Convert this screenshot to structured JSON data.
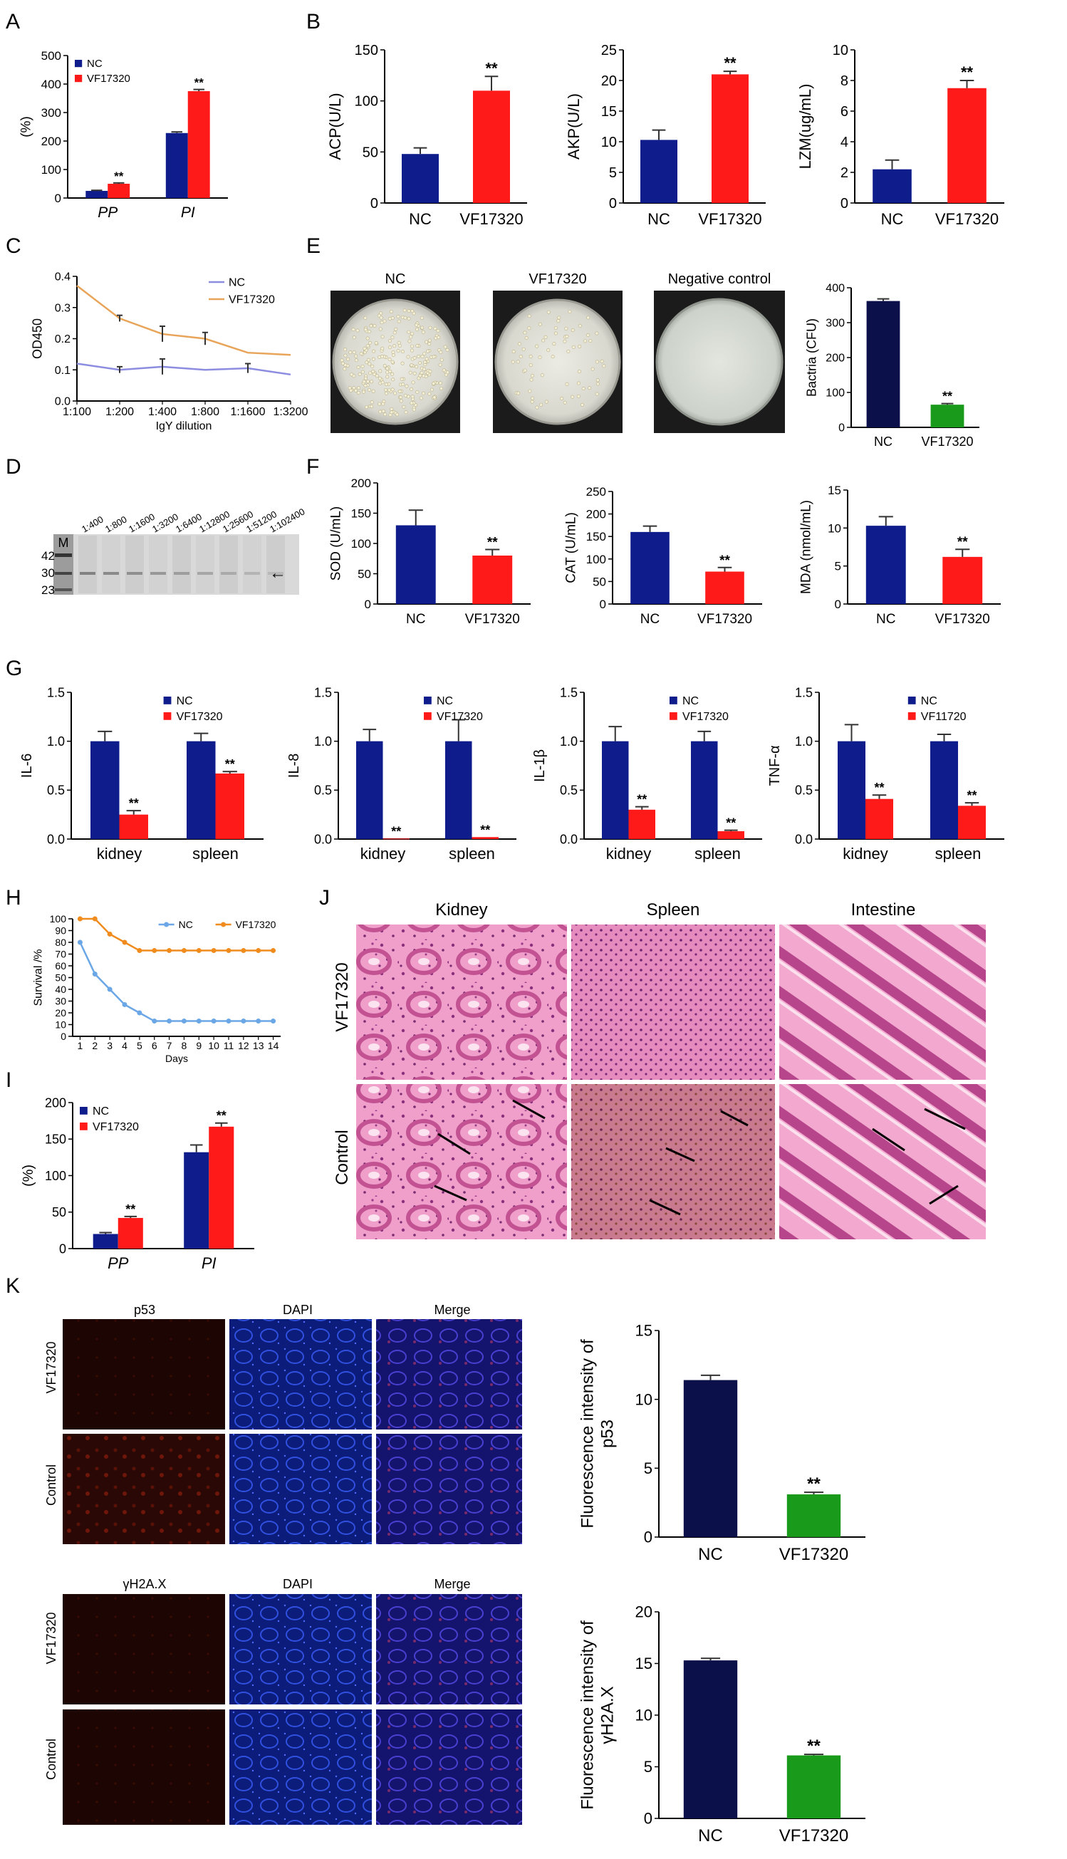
{
  "colors": {
    "nc_blue": "#0f1d8c",
    "vf_red": "#ff1a1a",
    "navy": "#0b0f4a",
    "green": "#1a9a1a",
    "nc_line": "#8c8ce0",
    "vf_line_c": "#e8a55a",
    "vf_line_h": "#f08c1e",
    "nc_line_h": "#6ba7e6",
    "he_pink": "#e78fc0",
    "he_pink_dark": "#c9508f",
    "fluor_red": "#3a0a06",
    "fluor_blue": "#0a1a6e"
  },
  "panels": {
    "A": "A",
    "B": "B",
    "C": "C",
    "D": "D",
    "E": "E",
    "F": "F",
    "G": "G",
    "H": "H",
    "I": "I",
    "J": "J",
    "K": "K"
  },
  "sig": "**",
  "panel_E": {
    "plate_labels": [
      "NC",
      "VF17320",
      "Negative control"
    ]
  },
  "panel_D": {
    "marker": "M",
    "ladder": [
      "42",
      "30",
      "23"
    ],
    "dilutions": [
      "1:400",
      "1:800",
      "1:1600",
      "1:3200",
      "1:6400",
      "1:12800",
      "1:25600",
      "1:51200",
      "1:102400"
    ],
    "arrow": "←"
  },
  "panel_J": {
    "columns": [
      "Kidney",
      "Spleen",
      "Intestine"
    ],
    "rows": [
      "VF17320",
      "Control"
    ]
  },
  "panel_K": {
    "block1_columns": [
      "p53",
      "DAPI",
      "Merge"
    ],
    "block2_columns": [
      "γH2A.X",
      "DAPI",
      "Merge"
    ],
    "rows": [
      "VF17320",
      "Control"
    ]
  },
  "chart_data": [
    {
      "id": "A",
      "type": "bar",
      "ylabel": "(%)",
      "ylim": [
        0,
        500
      ],
      "yticks": [
        0,
        100,
        200,
        300,
        400,
        500
      ],
      "categories": [
        "PP",
        "PI"
      ],
      "legend": "top-left",
      "series": [
        {
          "name": "NC",
          "values": [
            25,
            228
          ],
          "err": [
            2,
            4
          ]
        },
        {
          "name": "VF17320",
          "values": [
            50,
            375
          ],
          "err": [
            3,
            6
          ]
        }
      ],
      "significance": [
        "**",
        "**"
      ]
    },
    {
      "id": "B1",
      "type": "bar",
      "ylabel": "ACP(U/L)",
      "ylim": [
        0,
        150
      ],
      "yticks": [
        0,
        50,
        100,
        150
      ],
      "categories": [
        "NC",
        "VF17320"
      ],
      "values": [
        48,
        110
      ],
      "err": [
        6,
        14
      ],
      "significance": [
        "",
        "**"
      ]
    },
    {
      "id": "B2",
      "type": "bar",
      "ylabel": "AKP(U/L)",
      "ylim": [
        0,
        25
      ],
      "yticks": [
        0,
        5,
        10,
        15,
        20,
        25
      ],
      "categories": [
        "NC",
        "VF17320"
      ],
      "values": [
        10.3,
        21
      ],
      "err": [
        1.6,
        0.5
      ],
      "significance": [
        "",
        "**"
      ]
    },
    {
      "id": "B3",
      "type": "bar",
      "ylabel": "LZM(ug/mL)",
      "ylim": [
        0,
        10
      ],
      "yticks": [
        0,
        2,
        4,
        6,
        8,
        10
      ],
      "categories": [
        "NC",
        "VF17320"
      ],
      "values": [
        2.2,
        7.5
      ],
      "err": [
        0.6,
        0.5
      ],
      "significance": [
        "",
        "**"
      ]
    },
    {
      "id": "C",
      "type": "line",
      "ylabel": "OD450",
      "xlabel": "IgY dilution",
      "ylim": [
        0,
        0.4
      ],
      "yticks": [
        0,
        0.1,
        0.2,
        0.3,
        0.4
      ],
      "x": [
        "1:100",
        "1:200",
        "1:400",
        "1:800",
        "1:1600",
        "1:3200"
      ],
      "legend": "top-right",
      "series": [
        {
          "name": "NC",
          "values": [
            0.12,
            0.1,
            0.11,
            0.1,
            0.105,
            0.085
          ],
          "err": [
            0,
            0.01,
            0.025,
            0,
            0.015,
            0
          ]
        },
        {
          "name": "VF17320",
          "values": [
            0.37,
            0.265,
            0.215,
            0.2,
            0.155,
            0.148
          ],
          "err": [
            0,
            0.01,
            0.025,
            0.02,
            0,
            0
          ]
        }
      ]
    },
    {
      "id": "E",
      "type": "bar",
      "ylabel": "Bactria (CFU)",
      "ylim": [
        0,
        400
      ],
      "yticks": [
        0,
        100,
        200,
        300,
        400
      ],
      "categories": [
        "NC",
        "VF17320"
      ],
      "values": [
        362,
        65
      ],
      "err": [
        6,
        3
      ],
      "significance": [
        "",
        "**"
      ]
    },
    {
      "id": "F1",
      "type": "bar",
      "ylabel": "SOD (U/mL)",
      "ylim": [
        0,
        200
      ],
      "yticks": [
        0,
        50,
        100,
        150,
        200
      ],
      "categories": [
        "NC",
        "VF17320"
      ],
      "values": [
        130,
        80
      ],
      "err": [
        25,
        10
      ],
      "significance": [
        "",
        "**"
      ]
    },
    {
      "id": "F2",
      "type": "bar",
      "ylabel": "CAT (U/mL)",
      "ylim": [
        0,
        250
      ],
      "yticks": [
        0,
        50,
        100,
        150,
        200,
        250
      ],
      "categories": [
        "NC",
        "VF17320"
      ],
      "values": [
        160,
        72
      ],
      "err": [
        13,
        9
      ],
      "significance": [
        "",
        "**"
      ]
    },
    {
      "id": "F3",
      "type": "bar",
      "ylabel": "MDA (nmol/mL)",
      "ylim": [
        0,
        15
      ],
      "yticks": [
        0,
        5,
        10,
        15
      ],
      "categories": [
        "NC",
        "VF17320"
      ],
      "values": [
        10.3,
        6.2
      ],
      "err": [
        1.2,
        1
      ],
      "significance": [
        "",
        "**"
      ]
    },
    {
      "id": "G1",
      "type": "bar",
      "ylabel": "IL-6",
      "ylim": [
        0,
        1.5
      ],
      "yticks": [
        0.0,
        0.5,
        1.0,
        1.5
      ],
      "categories": [
        "kidney",
        "spleen"
      ],
      "legend": "top-right",
      "series": [
        {
          "name": "NC",
          "values": [
            1.0,
            1.0
          ],
          "err": [
            0.1,
            0.08
          ]
        },
        {
          "name": "VF17320",
          "values": [
            0.25,
            0.67
          ],
          "err": [
            0.04,
            0.02
          ]
        }
      ],
      "significance": [
        "**",
        "**"
      ]
    },
    {
      "id": "G2",
      "type": "bar",
      "ylabel": "IL-8",
      "ylim": [
        0,
        1.5
      ],
      "yticks": [
        0.0,
        0.5,
        1.0,
        1.5
      ],
      "categories": [
        "kidney",
        "spleen"
      ],
      "legend": "top-right",
      "series": [
        {
          "name": "NC",
          "values": [
            1.0,
            1.0
          ],
          "err": [
            0.12,
            0.22
          ]
        },
        {
          "name": "VF17320",
          "values": [
            0.005,
            0.02
          ],
          "err": [
            0,
            0
          ]
        }
      ],
      "significance": [
        "**",
        "**"
      ]
    },
    {
      "id": "G3",
      "type": "bar",
      "ylabel": "IL-1β",
      "ylim": [
        0,
        1.5
      ],
      "yticks": [
        0.0,
        0.5,
        1.0,
        1.5
      ],
      "categories": [
        "kidney",
        "spleen"
      ],
      "legend": "top-right",
      "series": [
        {
          "name": "NC",
          "values": [
            1.0,
            1.0
          ],
          "err": [
            0.15,
            0.1
          ]
        },
        {
          "name": "VF17320",
          "values": [
            0.3,
            0.08
          ],
          "err": [
            0.03,
            0.01
          ]
        }
      ],
      "significance": [
        "**",
        "**"
      ]
    },
    {
      "id": "G4",
      "type": "bar",
      "ylabel": "TNF-α",
      "ylim": [
        0,
        1.5
      ],
      "yticks": [
        0.0,
        0.5,
        1.0,
        1.5
      ],
      "categories": [
        "kidney",
        "spleen"
      ],
      "legend": "top-right",
      "series": [
        {
          "name": "NC",
          "values": [
            1.0,
            1.0
          ],
          "err": [
            0.17,
            0.07
          ]
        },
        {
          "name": "VF11720",
          "values": [
            0.41,
            0.34
          ],
          "err": [
            0.04,
            0.03
          ]
        }
      ],
      "significance": [
        "**",
        "**"
      ]
    },
    {
      "id": "H",
      "type": "line",
      "ylabel": "Survival /%",
      "xlabel": "Days",
      "ylim": [
        0,
        100
      ],
      "yticks": [
        0,
        10,
        20,
        30,
        40,
        50,
        60,
        70,
        80,
        90,
        100
      ],
      "x": [
        1,
        2,
        3,
        4,
        5,
        6,
        7,
        8,
        9,
        10,
        11,
        12,
        13,
        14
      ],
      "legend": "top-right",
      "series": [
        {
          "name": "NC",
          "values": [
            80,
            53,
            40,
            27,
            20,
            13,
            13,
            13,
            13,
            13,
            13,
            13,
            13,
            13
          ]
        },
        {
          "name": "VF17320",
          "values": [
            100,
            100,
            87,
            80,
            73,
            73,
            73,
            73,
            73,
            73,
            73,
            73,
            73,
            73
          ]
        }
      ]
    },
    {
      "id": "I",
      "type": "bar",
      "ylabel": "(%)",
      "ylim": [
        0,
        200
      ],
      "yticks": [
        0,
        50,
        100,
        150,
        200
      ],
      "categories": [
        "PP",
        "PI"
      ],
      "legend": "top-left",
      "series": [
        {
          "name": "NC",
          "values": [
            20,
            132
          ],
          "err": [
            2,
            10
          ]
        },
        {
          "name": "VF17320",
          "values": [
            42,
            167
          ],
          "err": [
            2,
            5
          ]
        }
      ],
      "significance": [
        "**",
        "**"
      ]
    },
    {
      "id": "K1",
      "type": "bar",
      "ylabel": "Fluorescence intensity of p53",
      "ylim": [
        0,
        15
      ],
      "yticks": [
        0,
        5,
        10,
        15
      ],
      "categories": [
        "NC",
        "VF17320"
      ],
      "values": [
        11.4,
        3.1
      ],
      "err": [
        0.35,
        0.15
      ],
      "significance": [
        "",
        "**"
      ]
    },
    {
      "id": "K2",
      "type": "bar",
      "ylabel": "Fluorescence intensity of γH2A.X",
      "ylim": [
        0,
        20
      ],
      "yticks": [
        0,
        5,
        10,
        15,
        20
      ],
      "categories": [
        "NC",
        "VF17320"
      ],
      "values": [
        15.3,
        6.1
      ],
      "err": [
        0.2,
        0.1
      ],
      "significance": [
        "",
        "**"
      ]
    }
  ]
}
